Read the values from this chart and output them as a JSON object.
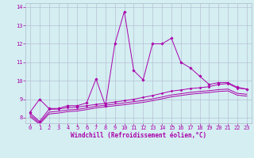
{
  "xlabel": "Windchill (Refroidissement éolien,°C)",
  "bg_color": "#d4eef2",
  "grid_color": "#b0b8cc",
  "line_color": "#aa00aa",
  "xlim": [
    -0.5,
    23.5
  ],
  "ylim": [
    7.7,
    14.2
  ],
  "yticks": [
    8,
    9,
    10,
    11,
    12,
    13,
    14
  ],
  "xticks": [
    0,
    1,
    2,
    3,
    4,
    5,
    6,
    7,
    8,
    9,
    10,
    11,
    12,
    13,
    14,
    15,
    16,
    17,
    18,
    19,
    20,
    21,
    22,
    23
  ],
  "series1_x": [
    0,
    1,
    2,
    3,
    4,
    5,
    6,
    7,
    8,
    9,
    10,
    11,
    12,
    13,
    14,
    15,
    16,
    17,
    18,
    19,
    20,
    21,
    22,
    23
  ],
  "series1_y": [
    8.3,
    9.0,
    8.5,
    8.5,
    8.65,
    8.65,
    8.8,
    10.1,
    8.65,
    12.0,
    13.75,
    10.55,
    10.05,
    12.0,
    12.0,
    12.3,
    11.0,
    10.7,
    10.25,
    9.8,
    9.9,
    9.9,
    9.65,
    9.55
  ],
  "series2_x": [
    0,
    1,
    2,
    3,
    4,
    5,
    6,
    7,
    8,
    9,
    10,
    11,
    12,
    13,
    14,
    15,
    16,
    17,
    18,
    19,
    20,
    21,
    22,
    23
  ],
  "series2_y": [
    8.25,
    7.8,
    8.45,
    8.47,
    8.55,
    8.57,
    8.65,
    8.72,
    8.78,
    8.85,
    8.92,
    9.0,
    9.1,
    9.2,
    9.32,
    9.44,
    9.5,
    9.58,
    9.62,
    9.68,
    9.8,
    9.85,
    9.6,
    9.55
  ],
  "series3_x": [
    0,
    1,
    2,
    3,
    4,
    5,
    6,
    7,
    8,
    9,
    10,
    11,
    12,
    13,
    14,
    15,
    16,
    17,
    18,
    19,
    20,
    21,
    22,
    23
  ],
  "series3_y": [
    8.15,
    7.72,
    8.3,
    8.35,
    8.42,
    8.45,
    8.53,
    8.62,
    8.68,
    8.74,
    8.8,
    8.87,
    8.93,
    9.02,
    9.12,
    9.23,
    9.3,
    9.37,
    9.42,
    9.46,
    9.52,
    9.55,
    9.32,
    9.27
  ],
  "series4_x": [
    0,
    1,
    2,
    3,
    4,
    5,
    6,
    7,
    8,
    9,
    10,
    11,
    12,
    13,
    14,
    15,
    16,
    17,
    18,
    19,
    20,
    21,
    22,
    23
  ],
  "series4_y": [
    8.05,
    7.65,
    8.2,
    8.25,
    8.33,
    8.36,
    8.44,
    8.53,
    8.59,
    8.65,
    8.7,
    8.77,
    8.83,
    8.92,
    9.02,
    9.13,
    9.2,
    9.27,
    9.32,
    9.36,
    9.42,
    9.45,
    9.22,
    9.17
  ],
  "tick_fontsize": 5,
  "xlabel_fontsize": 5.5
}
